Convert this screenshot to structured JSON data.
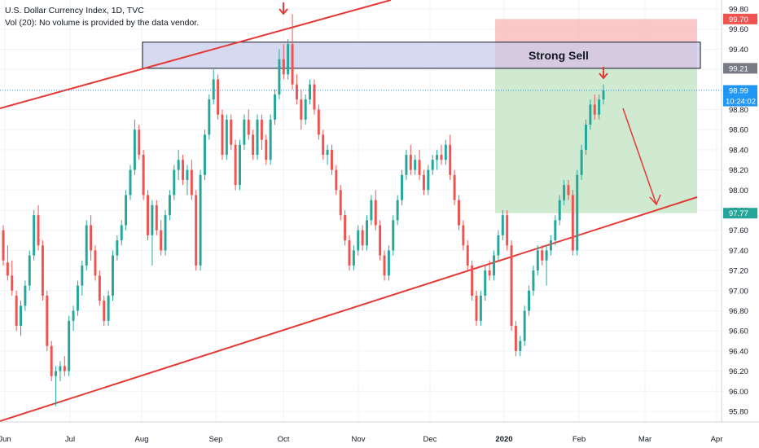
{
  "header": {
    "symbol_line": "U.S. Dollar Currency Index, 1D, TVC",
    "volume_line": "Vol (20): No volume is provided by the data vendor."
  },
  "colors": {
    "up": "#26a69a",
    "down": "#ef5350",
    "trendline": "#e53935",
    "zone_sell": "#c5cae9",
    "stop_zone": "#f8b6b6",
    "target_zone": "#c8e6c9",
    "price_line": "#2196f3"
  },
  "zone_label": "Strong Sell",
  "countdown": "10:24:02",
  "price_tags": [
    {
      "value": 99.7,
      "label": "99.70",
      "kind": "stop"
    },
    {
      "value": 99.21,
      "label": "99.21",
      "kind": "entry"
    },
    {
      "value": 98.99,
      "label": "98.99",
      "kind": "last"
    },
    {
      "value": 97.77,
      "label": "97.77",
      "kind": "target"
    }
  ],
  "chart_data": {
    "type": "candlestick",
    "x_ticks": [
      "Jun",
      "Jul",
      "Aug",
      "Sep",
      "Oct",
      "Nov",
      "Dec",
      "2020",
      "Feb",
      "Mar",
      "Apr"
    ],
    "y_ticks": [
      "99.80",
      "99.60",
      "99.40",
      "99.20",
      "99.00",
      "98.80",
      "98.60",
      "98.40",
      "98.20",
      "98.00",
      "97.80",
      "97.60",
      "97.40",
      "97.20",
      "97.00",
      "96.80",
      "96.60",
      "96.40",
      "96.20",
      "96.00",
      "95.80"
    ],
    "ylim": [
      95.67,
      99.9
    ],
    "grid": true,
    "resistance_zone": [
      99.21,
      99.47
    ],
    "position": {
      "entry": 99.21,
      "stop": 99.7,
      "target": 97.77
    },
    "last_price": 98.99,
    "candles": [
      [
        97.6,
        97.65,
        97.25,
        97.3
      ],
      [
        97.28,
        97.45,
        97.1,
        97.15
      ],
      [
        97.15,
        97.3,
        96.95,
        97.0
      ],
      [
        96.95,
        97.0,
        96.6,
        96.65
      ],
      [
        96.65,
        96.9,
        96.55,
        96.85
      ],
      [
        96.85,
        97.1,
        96.8,
        97.05
      ],
      [
        97.05,
        97.4,
        97.0,
        97.35
      ],
      [
        97.35,
        97.8,
        97.3,
        97.75
      ],
      [
        97.75,
        97.85,
        97.4,
        97.45
      ],
      [
        97.45,
        97.5,
        96.9,
        96.95
      ],
      [
        96.95,
        97.0,
        96.4,
        96.45
      ],
      [
        96.45,
        96.5,
        96.1,
        96.15
      ],
      [
        96.15,
        96.25,
        95.85,
        96.2
      ],
      [
        96.2,
        96.3,
        96.1,
        96.25
      ],
      [
        96.25,
        96.35,
        96.15,
        96.2
      ],
      [
        96.2,
        96.75,
        96.15,
        96.7
      ],
      [
        96.7,
        96.85,
        96.6,
        96.8
      ],
      [
        96.8,
        97.1,
        96.75,
        97.05
      ],
      [
        97.05,
        97.3,
        96.95,
        97.25
      ],
      [
        97.25,
        97.7,
        97.2,
        97.65
      ],
      [
        97.65,
        97.75,
        97.3,
        97.4
      ],
      [
        97.4,
        97.45,
        97.1,
        97.15
      ],
      [
        97.15,
        97.2,
        96.85,
        96.9
      ],
      [
        96.9,
        96.95,
        96.65,
        96.7
      ],
      [
        96.7,
        97.0,
        96.65,
        96.95
      ],
      [
        96.95,
        97.4,
        96.9,
        97.35
      ],
      [
        97.35,
        97.55,
        97.3,
        97.5
      ],
      [
        97.5,
        97.7,
        97.45,
        97.65
      ],
      [
        97.65,
        98.0,
        97.6,
        97.95
      ],
      [
        97.95,
        98.25,
        97.9,
        98.2
      ],
      [
        98.2,
        98.7,
        98.15,
        98.6
      ],
      [
        98.6,
        98.65,
        98.3,
        98.35
      ],
      [
        98.35,
        98.4,
        97.9,
        97.95
      ],
      [
        97.95,
        98.0,
        97.5,
        97.55
      ],
      [
        97.55,
        97.9,
        97.25,
        97.85
      ],
      [
        97.85,
        97.9,
        97.55,
        97.6
      ],
      [
        97.6,
        97.7,
        97.35,
        97.4
      ],
      [
        97.4,
        97.8,
        97.35,
        97.75
      ],
      [
        97.75,
        98.0,
        97.7,
        97.95
      ],
      [
        97.95,
        98.25,
        97.9,
        98.2
      ],
      [
        98.2,
        98.4,
        98.1,
        98.3
      ],
      [
        98.3,
        98.35,
        98.05,
        98.1
      ],
      [
        98.1,
        98.25,
        97.95,
        98.2
      ],
      [
        98.2,
        98.3,
        97.9,
        97.95
      ],
      [
        97.95,
        98.0,
        97.2,
        97.25
      ],
      [
        97.25,
        98.2,
        97.2,
        98.15
      ],
      [
        98.15,
        98.6,
        98.1,
        98.55
      ],
      [
        98.55,
        98.95,
        98.5,
        98.9
      ],
      [
        98.9,
        99.2,
        98.85,
        99.1
      ],
      [
        99.1,
        99.15,
        98.7,
        98.75
      ],
      [
        98.75,
        98.8,
        98.3,
        98.35
      ],
      [
        98.35,
        98.75,
        98.3,
        98.7
      ],
      [
        98.7,
        98.75,
        98.4,
        98.45
      ],
      [
        98.45,
        98.5,
        98.0,
        98.05
      ],
      [
        98.05,
        98.5,
        98.0,
        98.45
      ],
      [
        98.45,
        98.75,
        98.4,
        98.7
      ],
      [
        98.7,
        98.8,
        98.5,
        98.55
      ],
      [
        98.55,
        98.6,
        98.3,
        98.35
      ],
      [
        98.35,
        98.75,
        98.3,
        98.7
      ],
      [
        98.7,
        98.75,
        98.4,
        98.5
      ],
      [
        98.5,
        98.55,
        98.25,
        98.3
      ],
      [
        98.3,
        98.75,
        98.25,
        98.7
      ],
      [
        98.7,
        99.0,
        98.65,
        98.95
      ],
      [
        98.95,
        99.4,
        98.9,
        99.3
      ],
      [
        99.3,
        99.45,
        99.1,
        99.15
      ],
      [
        99.15,
        99.5,
        99.1,
        99.45
      ],
      [
        99.45,
        99.75,
        99.0,
        99.05
      ],
      [
        99.05,
        99.15,
        98.85,
        98.9
      ],
      [
        98.9,
        99.0,
        98.6,
        98.7
      ],
      [
        98.7,
        98.95,
        98.65,
        98.9
      ],
      [
        98.9,
        99.1,
        98.85,
        99.05
      ],
      [
        99.05,
        99.1,
        98.75,
        98.8
      ],
      [
        98.8,
        98.85,
        98.5,
        98.55
      ],
      [
        98.55,
        98.6,
        98.3,
        98.35
      ],
      [
        98.35,
        98.45,
        98.25,
        98.4
      ],
      [
        98.4,
        98.45,
        98.15,
        98.2
      ],
      [
        98.2,
        98.25,
        97.95,
        98.0
      ],
      [
        98.0,
        98.05,
        97.7,
        97.75
      ],
      [
        97.75,
        97.8,
        97.45,
        97.5
      ],
      [
        97.5,
        97.55,
        97.2,
        97.25
      ],
      [
        97.25,
        97.45,
        97.2,
        97.4
      ],
      [
        97.4,
        97.65,
        97.35,
        97.6
      ],
      [
        97.6,
        97.65,
        97.4,
        97.45
      ],
      [
        97.45,
        97.75,
        97.4,
        97.7
      ],
      [
        97.7,
        97.95,
        97.65,
        97.9
      ],
      [
        97.9,
        98.0,
        97.6,
        97.65
      ],
      [
        97.65,
        97.7,
        97.3,
        97.35
      ],
      [
        97.35,
        97.4,
        97.1,
        97.15
      ],
      [
        97.15,
        97.45,
        97.1,
        97.4
      ],
      [
        97.4,
        97.75,
        97.35,
        97.7
      ],
      [
        97.7,
        97.95,
        97.65,
        97.9
      ],
      [
        97.9,
        98.2,
        97.85,
        98.15
      ],
      [
        98.15,
        98.4,
        98.1,
        98.35
      ],
      [
        98.35,
        98.45,
        98.15,
        98.2
      ],
      [
        98.2,
        98.35,
        98.15,
        98.3
      ],
      [
        98.3,
        98.4,
        98.1,
        98.15
      ],
      [
        98.15,
        98.2,
        97.95,
        98.0
      ],
      [
        98.0,
        98.25,
        97.95,
        98.2
      ],
      [
        98.2,
        98.35,
        98.15,
        98.3
      ],
      [
        98.3,
        98.4,
        98.2,
        98.35
      ],
      [
        98.35,
        98.45,
        98.25,
        98.3
      ],
      [
        98.3,
        98.5,
        98.25,
        98.45
      ],
      [
        98.45,
        98.55,
        98.1,
        98.15
      ],
      [
        98.15,
        98.2,
        97.85,
        97.9
      ],
      [
        97.9,
        97.95,
        97.6,
        97.65
      ],
      [
        97.65,
        97.7,
        97.4,
        97.45
      ],
      [
        97.45,
        97.5,
        97.2,
        97.25
      ],
      [
        97.25,
        97.3,
        96.9,
        96.95
      ],
      [
        96.95,
        97.0,
        96.65,
        96.7
      ],
      [
        96.7,
        97.0,
        96.65,
        96.95
      ],
      [
        96.95,
        97.25,
        96.9,
        97.2
      ],
      [
        97.2,
        97.3,
        97.1,
        97.15
      ],
      [
        97.15,
        97.4,
        97.1,
        97.35
      ],
      [
        97.35,
        97.6,
        97.3,
        97.55
      ],
      [
        97.55,
        97.8,
        97.5,
        97.75
      ],
      [
        97.75,
        97.8,
        97.4,
        97.45
      ],
      [
        97.45,
        97.5,
        96.6,
        96.65
      ],
      [
        96.65,
        96.7,
        96.35,
        96.4
      ],
      [
        96.4,
        96.55,
        96.35,
        96.5
      ],
      [
        96.5,
        96.85,
        96.45,
        96.8
      ],
      [
        96.8,
        97.05,
        96.75,
        97.0
      ],
      [
        97.0,
        97.25,
        96.95,
        97.2
      ],
      [
        97.2,
        97.45,
        97.15,
        97.4
      ],
      [
        97.4,
        97.45,
        97.25,
        97.3
      ],
      [
        97.3,
        97.45,
        97.05,
        97.4
      ],
      [
        97.4,
        97.55,
        97.35,
        97.5
      ],
      [
        97.5,
        97.75,
        97.45,
        97.7
      ],
      [
        97.7,
        97.95,
        97.65,
        97.9
      ],
      [
        97.9,
        98.1,
        97.85,
        98.05
      ],
      [
        98.05,
        98.1,
        97.9,
        97.95
      ],
      [
        97.95,
        98.0,
        97.35,
        97.4
      ],
      [
        97.4,
        98.2,
        97.35,
        98.15
      ],
      [
        98.15,
        98.45,
        98.1,
        98.4
      ],
      [
        98.4,
        98.7,
        98.35,
        98.65
      ],
      [
        98.65,
        98.9,
        98.6,
        98.85
      ],
      [
        98.85,
        98.95,
        98.7,
        98.75
      ],
      [
        98.75,
        98.95,
        98.7,
        98.9
      ],
      [
        98.9,
        99.05,
        98.85,
        98.99
      ]
    ]
  }
}
